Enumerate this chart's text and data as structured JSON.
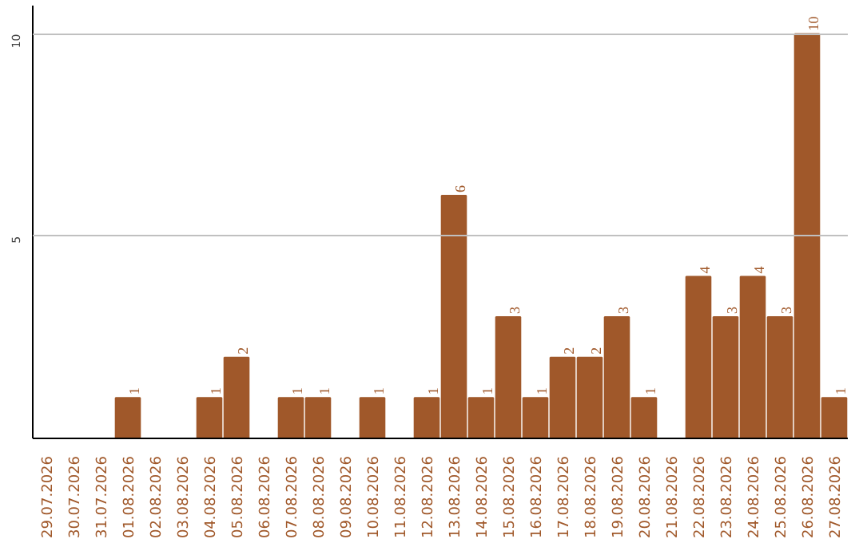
{
  "chart_data": {
    "type": "bar",
    "categories": [
      "29.07.2026",
      "30.07.2026",
      "31.07.2026",
      "01.08.2026",
      "02.08.2026",
      "03.08.2026",
      "04.08.2026",
      "05.08.2026",
      "06.08.2026",
      "07.08.2026",
      "08.08.2026",
      "09.08.2026",
      "10.08.2026",
      "11.08.2026",
      "12.08.2026",
      "13.08.2026",
      "14.08.2026",
      "15.08.2026",
      "16.08.2026",
      "17.08.2026",
      "18.08.2026",
      "19.08.2026",
      "20.08.2026",
      "21.08.2026",
      "22.08.2026",
      "23.08.2026",
      "24.08.2026",
      "25.08.2026",
      "26.08.2026",
      "27.08.2026"
    ],
    "values": [
      0,
      0,
      0,
      1,
      0,
      0,
      1,
      2,
      0,
      1,
      1,
      0,
      1,
      0,
      1,
      6,
      1,
      3,
      1,
      2,
      2,
      3,
      1,
      0,
      4,
      3,
      4,
      3,
      10,
      1
    ],
    "value_labels": [
      null,
      null,
      null,
      "1",
      null,
      null,
      "1",
      "2",
      null,
      "1",
      "1",
      null,
      "1",
      null,
      "1",
      "6",
      "1",
      "3",
      "1",
      "2",
      "2",
      "3",
      "1",
      null,
      "4",
      "3",
      "4",
      "3",
      "10",
      "1"
    ],
    "color": "#a0582a",
    "ylim": [
      0,
      10.7
    ],
    "yticks": [
      5,
      10
    ],
    "grid": "y"
  }
}
